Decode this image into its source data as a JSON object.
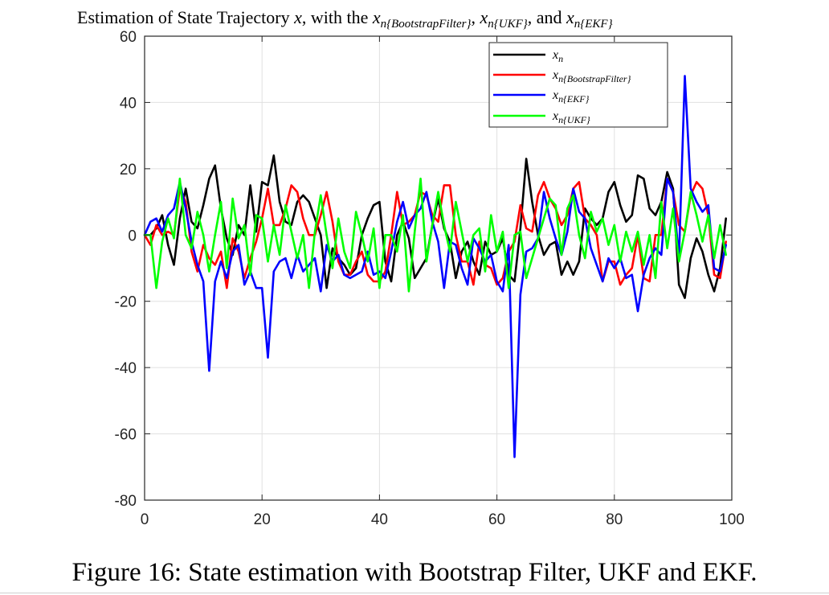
{
  "chart_data": {
    "type": "line",
    "title": "Estimation of State Trajectory x, with the x_{n{BootstrapFilter}}, x_{n{UKF}}, and x_{n{EKF}}",
    "title_parts": {
      "prefix": "Estimation of State Trajectory ",
      "x": "x",
      "mid1": ", with the ",
      "sub_bootstrap": "n{BootstrapFilter}",
      "sep1": ", ",
      "sub_ukf": "n{UKF}",
      "sep2": ", and ",
      "sub_ekf": "n{EKF}"
    },
    "xlabel": "",
    "ylabel": "",
    "xlim": [
      0,
      100
    ],
    "ylim": [
      -80,
      60
    ],
    "x_ticks": [
      0,
      20,
      40,
      60,
      80,
      100
    ],
    "y_ticks": [
      -80,
      -60,
      -40,
      -20,
      0,
      20,
      40,
      60
    ],
    "grid": true,
    "legend_position": "top-right",
    "series": [
      {
        "name": "x_n",
        "legend_base": "x",
        "legend_sub": "n",
        "color": "#000000",
        "values": [
          0,
          2,
          6,
          -3,
          -9,
          5,
          14,
          4,
          2,
          9,
          17,
          21,
          8,
          -1,
          -6,
          3,
          0,
          15,
          1,
          16,
          15,
          24,
          10,
          4,
          3,
          10,
          12,
          10,
          5,
          0,
          -16,
          -4,
          -7,
          -9,
          -12,
          -10,
          0,
          5,
          9,
          10,
          -8,
          -14,
          0,
          4,
          -1,
          -13,
          -10,
          -7,
          3,
          11,
          2,
          -2,
          -13,
          -5,
          -2,
          -8,
          -12,
          -2,
          -6,
          -5,
          -1,
          -12,
          -14,
          2,
          23,
          10,
          0,
          -6,
          -3,
          -2,
          -12,
          -8,
          -12,
          -8,
          8,
          5,
          3,
          5,
          13,
          16,
          9,
          4,
          6,
          18,
          17,
          8,
          6,
          10,
          19,
          14,
          -15,
          -19,
          -7,
          -1,
          -5,
          -12,
          -17,
          -10,
          5
        ],
        "x_start": 1
      },
      {
        "name": "x_{n{BootstrapFilter}}",
        "legend_base": "x",
        "legend_sub": "n{BootstrapFilter}",
        "color": "#ff0000",
        "values": [
          0,
          -3,
          3,
          0,
          1,
          0,
          14,
          10,
          -5,
          -11,
          -3,
          -7,
          -9,
          -5,
          -16,
          -1,
          -5,
          -13,
          -7,
          -2,
          5,
          14,
          3,
          3,
          8,
          15,
          13,
          5,
          0,
          0,
          6,
          13,
          4,
          -8,
          -12,
          -12,
          -8,
          -5,
          -12,
          -14,
          -14,
          -11,
          0,
          13,
          3,
          4,
          6,
          13,
          12,
          6,
          4,
          15,
          15,
          0,
          -8,
          -8,
          -15,
          -2,
          -9,
          -10,
          -15,
          -13,
          -5,
          -2,
          9,
          2,
          1,
          12,
          16,
          11,
          8,
          3,
          6,
          14,
          16,
          5,
          3,
          0,
          -14,
          -8,
          -8,
          -15,
          -12,
          -10,
          0,
          -13,
          -14,
          0,
          0,
          17,
          13,
          3,
          1,
          12,
          16,
          14,
          6,
          -12,
          -13,
          -2
        ],
        "x_start": 0
      },
      {
        "name": "x_{n{EKF}}",
        "legend_base": "x",
        "legend_sub": "n{EKF}",
        "color": "#0000ff",
        "values": [
          0,
          4,
          5,
          1,
          6,
          8,
          16,
          8,
          -2,
          -9,
          -14,
          -41,
          -14,
          -8,
          -13,
          -5,
          -3,
          -15,
          -11,
          -16,
          -16,
          -37,
          -11,
          -8,
          -7,
          -13,
          -6,
          -11,
          -9,
          -7,
          -17,
          -3,
          -8,
          -6,
          -12,
          -13,
          -12,
          -11,
          -5,
          -12,
          -11,
          -13,
          -5,
          4,
          10,
          2,
          6,
          8,
          13,
          4,
          -2,
          -16,
          -2,
          -3,
          -10,
          -15,
          -1,
          -4,
          -8,
          -6,
          -14,
          -17,
          -3,
          -67,
          -18,
          -5,
          -4,
          -1,
          13,
          5,
          -1,
          -6,
          1,
          14,
          7,
          5,
          -4,
          -9,
          -14,
          -7,
          -10,
          -7,
          -13,
          -12,
          -23,
          -12,
          -7,
          -4,
          -6,
          17,
          13,
          -7,
          48,
          14,
          10,
          7,
          9,
          -10,
          -11,
          -3
        ],
        "x_start": 0
      },
      {
        "name": "x_{n{UKF}}",
        "legend_base": "x",
        "legend_sub": "n{UKF}",
        "color": "#00ff00",
        "values": [
          0,
          0,
          -16,
          -2,
          5,
          -1,
          17,
          0,
          -4,
          7,
          0,
          -11,
          0,
          10,
          -10,
          11,
          -1,
          3,
          -12,
          6,
          5,
          -8,
          3,
          -6,
          9,
          1,
          -7,
          0,
          -16,
          1,
          12,
          0,
          -10,
          5,
          -5,
          -10,
          7,
          0,
          -8,
          2,
          -16,
          0,
          0,
          -5,
          6,
          -17,
          1,
          17,
          -8,
          3,
          13,
          3,
          -5,
          10,
          1,
          -8,
          0,
          2,
          -11,
          6,
          -5,
          1,
          -16,
          0,
          1,
          -13,
          -7,
          -1,
          5,
          11,
          9,
          -6,
          8,
          12,
          0,
          -7,
          7,
          1,
          5,
          -3,
          3,
          -8,
          1,
          -5,
          1,
          -9,
          0,
          -13,
          10,
          -4,
          8,
          -8,
          1,
          13,
          6,
          -2,
          6,
          -7,
          3,
          -6
        ],
        "x_start": 0
      }
    ]
  },
  "caption": "Figure 16: State estimation with Bootstrap Filter, UKF and EKF."
}
